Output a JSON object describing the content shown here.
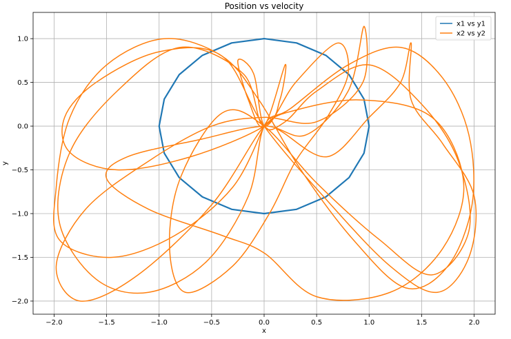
{
  "chart_data": {
    "type": "line",
    "title": "Position vs velocity",
    "xlabel": "x",
    "ylabel": "y",
    "xlim": [
      -2.2,
      2.2
    ],
    "ylim": [
      -2.15,
      1.3
    ],
    "xticks": [
      -2.0,
      -1.5,
      -1.0,
      -0.5,
      0.0,
      0.5,
      1.0,
      1.5,
      2.0
    ],
    "xtick_labels": [
      "−2.0",
      "−1.5",
      "−1.0",
      "−0.5",
      "0.0",
      "0.5",
      "1.0",
      "1.5",
      "2.0"
    ],
    "yticks": [
      1.0,
      0.5,
      0.0,
      -0.5,
      -1.0,
      -1.5,
      -2.0
    ],
    "ytick_labels": [
      "1.0",
      "0.5",
      "0.0",
      "−0.5",
      "−1.0",
      "−1.5",
      "−2.0"
    ],
    "grid": true,
    "legend_position": "top-right",
    "series": [
      {
        "name": "x1 vs y1",
        "color": "#1f77b4",
        "x": [
          1.0,
          0.951,
          0.809,
          0.588,
          0.309,
          0.0,
          -0.309,
          -0.588,
          -0.809,
          -0.951,
          -1.0,
          -0.951,
          -0.809,
          -0.588,
          -0.309,
          0.0,
          0.309,
          0.588,
          0.809,
          0.951,
          1.0
        ],
        "y": [
          0.0,
          0.309,
          0.588,
          0.809,
          0.951,
          1.0,
          0.951,
          0.809,
          0.588,
          0.309,
          0.0,
          -0.309,
          -0.588,
          -0.809,
          -0.951,
          -1.0,
          -0.951,
          -0.809,
          -0.588,
          -0.309,
          0.0
        ]
      },
      {
        "name": "x2 vs y2",
        "color": "#ff7f0e",
        "x": [
          0.0,
          -0.3,
          -0.85,
          -1.45,
          -1.95,
          -1.98,
          -1.85,
          -1.5,
          -0.95,
          -0.4,
          -0.05,
          0.35,
          0.85,
          1.35,
          1.75,
          1.98,
          1.95,
          1.7,
          1.3,
          0.8,
          0.25,
          0.0,
          -0.15,
          -0.55,
          -1.1,
          -1.6,
          -1.95,
          -1.85,
          -1.4,
          -0.8,
          -0.2,
          0.0,
          0.3,
          0.7,
          0.8,
          0.6,
          0.3,
          0.05,
          -0.3,
          -0.75,
          -0.9,
          -0.8,
          -0.4,
          0.0,
          0.5,
          1.1,
          1.6,
          1.95,
          1.85,
          1.5,
          1.0,
          0.5,
          0.2,
          0.0,
          -0.1,
          -0.25,
          -0.15,
          0.0,
          0.2,
          0.15,
          0.0,
          -0.7,
          -1.4,
          -1.85,
          -1.9,
          -1.6,
          -1.0,
          -0.4,
          0.0,
          0.6,
          1.2,
          1.65,
          1.95,
          2.0,
          1.7,
          1.4,
          1.4,
          1.3,
          1.0,
          0.6,
          0.15,
          0.0,
          -0.5,
          -1.2,
          -1.75,
          -1.98,
          -1.7,
          -1.1,
          -0.5,
          0.0,
          0.5,
          0.94,
          0.95,
          0.8,
          0.4,
          0.0,
          -0.6,
          -1.3,
          -1.5,
          -1.1,
          -0.4,
          0.0,
          0.5,
          1.2,
          1.7,
          1.9,
          1.6,
          0.9,
          0.2,
          0.0
        ],
        "y": [
          0.0,
          -0.7,
          -1.25,
          -1.5,
          -1.3,
          -0.7,
          0.1,
          0.7,
          1.0,
          0.8,
          0.3,
          -0.5,
          -1.3,
          -1.85,
          -1.6,
          -0.9,
          -0.1,
          0.55,
          0.9,
          0.7,
          0.2,
          0.0,
          -0.8,
          -1.55,
          -1.9,
          -1.75,
          -1.1,
          -0.3,
          0.4,
          0.9,
          0.6,
          0.0,
          0.5,
          0.95,
          0.6,
          0.1,
          -0.4,
          -1.0,
          -1.6,
          -1.9,
          -1.4,
          -0.6,
          0.15,
          0.0,
          -0.65,
          -1.3,
          -1.7,
          -1.2,
          -0.4,
          0.25,
          0.7,
          0.4,
          0.05,
          0.0,
          0.6,
          0.75,
          0.3,
          0.0,
          0.7,
          0.3,
          0.0,
          -0.35,
          -0.5,
          -0.3,
          0.1,
          0.5,
          0.85,
          0.8,
          0.0,
          -0.85,
          -1.6,
          -1.9,
          -1.5,
          -0.8,
          -0.2,
          0.3,
          0.95,
          0.5,
          0.1,
          -0.35,
          -0.05,
          0.0,
          -0.9,
          -1.7,
          -2.0,
          -1.6,
          -0.95,
          -0.4,
          0.0,
          0.1,
          0.05,
          0.5,
          1.14,
          0.4,
          -0.1,
          0.0,
          -0.15,
          -0.35,
          -0.6,
          -0.95,
          -1.25,
          -1.45,
          -1.95,
          -1.9,
          -1.4,
          -0.65,
          0.1,
          0.3,
          0.15,
          0.0
        ]
      }
    ]
  }
}
